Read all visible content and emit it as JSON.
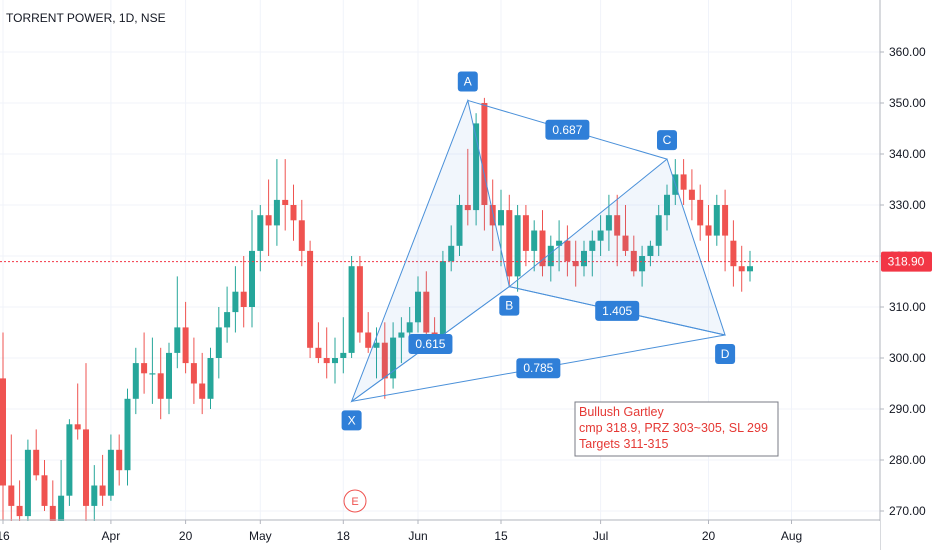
{
  "header": {
    "title": "TORRENT POWER, 1D, NSE"
  },
  "price_tag": {
    "label": "318.90",
    "color": "#f23645"
  },
  "colors": {
    "up": "#26a69a",
    "down": "#ef5350",
    "pattern": "#4a90d9",
    "label_bg": "#2f7fd8",
    "grid": "#f0f3fa",
    "note": "#e53935"
  },
  "annotation": {
    "lines": [
      "Bullush Gartley",
      "cmp 318.9, PRZ 303~305, SL 299",
      "Targets 311-315"
    ]
  },
  "event_marker": {
    "label": "E"
  },
  "chart_data": {
    "type": "candlestick",
    "title": "TORRENT POWER, 1D, NSE",
    "xlabel": "",
    "ylabel": "",
    "ylim": [
      268,
      368
    ],
    "y_ticks": [
      270,
      280,
      290,
      300,
      310,
      320,
      330,
      340,
      350,
      360
    ],
    "y_tick_labels": [
      "270.00",
      "280.00",
      "290.00",
      "300.00",
      "310.00",
      "320.00",
      "330.00",
      "340.00",
      "350.00",
      "360.00"
    ],
    "x_ticks": [
      {
        "bar": 0,
        "label": "16"
      },
      {
        "bar": 13,
        "label": "Apr"
      },
      {
        "bar": 22,
        "label": "20"
      },
      {
        "bar": 31,
        "label": "May"
      },
      {
        "bar": 41,
        "label": "18"
      },
      {
        "bar": 50,
        "label": "Jun"
      },
      {
        "bar": 60,
        "label": "15"
      },
      {
        "bar": 72,
        "label": "Jul"
      },
      {
        "bar": 85,
        "label": "20"
      },
      {
        "bar": 95,
        "label": "Aug"
      }
    ],
    "current_price": 318.9,
    "candles": [
      [
        296,
        305,
        268,
        275
      ],
      [
        275,
        285,
        263,
        271
      ],
      [
        271,
        276,
        266,
        269
      ],
      [
        269,
        284,
        268,
        282
      ],
      [
        282,
        286,
        276,
        277
      ],
      [
        277,
        280,
        270,
        271
      ],
      [
        271,
        276,
        262,
        265
      ],
      [
        265,
        280,
        263,
        273
      ],
      [
        273,
        288,
        271,
        287
      ],
      [
        287,
        295,
        284,
        286
      ],
      [
        286,
        299,
        266,
        271
      ],
      [
        271,
        279,
        268,
        275
      ],
      [
        275,
        281,
        271,
        273
      ],
      [
        273,
        285,
        272,
        282
      ],
      [
        282,
        285,
        275,
        278
      ],
      [
        278,
        294,
        275,
        292
      ],
      [
        292,
        302,
        289,
        299
      ],
      [
        299,
        305,
        293,
        297
      ],
      [
        297,
        304,
        291,
        297
      ],
      [
        297,
        302,
        288,
        292
      ],
      [
        292,
        303,
        289,
        301
      ],
      [
        301,
        316,
        298,
        306
      ],
      [
        306,
        311,
        297,
        299
      ],
      [
        299,
        304,
        291,
        295
      ],
      [
        295,
        301,
        289,
        292
      ],
      [
        292,
        302,
        290,
        300
      ],
      [
        300,
        310,
        296,
        306
      ],
      [
        306,
        314,
        303,
        309
      ],
      [
        309,
        318,
        305,
        313
      ],
      [
        313,
        320,
        306,
        310
      ],
      [
        310,
        329,
        306,
        321
      ],
      [
        321,
        330,
        317,
        328
      ],
      [
        328,
        335,
        320,
        326
      ],
      [
        326,
        339,
        322,
        331
      ],
      [
        331,
        339,
        325,
        330
      ],
      [
        330,
        334,
        323,
        327
      ],
      [
        327,
        331,
        318,
        321
      ],
      [
        321,
        323,
        300,
        302
      ],
      [
        302,
        307,
        299,
        300
      ],
      [
        300,
        306,
        296,
        299
      ],
      [
        299,
        304,
        295,
        300
      ],
      [
        300,
        308,
        297,
        301
      ],
      [
        301,
        320,
        300,
        318
      ],
      [
        318,
        320,
        303,
        305
      ],
      [
        305,
        309,
        301,
        302
      ],
      [
        302,
        306,
        296,
        303
      ],
      [
        303,
        307,
        292,
        296
      ],
      [
        296,
        307,
        294,
        304
      ],
      [
        304,
        308,
        299,
        305
      ],
      [
        305,
        310,
        302,
        307
      ],
      [
        307,
        316,
        305,
        313
      ],
      [
        313,
        317,
        304,
        305
      ],
      [
        305,
        308,
        302,
        303
      ],
      [
        303,
        321,
        302,
        319
      ],
      [
        319,
        326,
        317,
        322
      ],
      [
        322,
        332,
        320,
        330
      ],
      [
        330,
        341,
        326,
        329
      ],
      [
        329,
        348,
        326,
        346
      ],
      [
        350,
        351,
        325,
        330
      ],
      [
        330,
        335,
        321,
        326
      ],
      [
        326,
        333,
        318,
        329
      ],
      [
        329,
        332,
        314,
        316
      ],
      [
        316,
        330,
        313,
        328
      ],
      [
        328,
        330,
        318,
        321
      ],
      [
        321,
        327,
        317,
        325
      ],
      [
        325,
        329,
        316,
        318
      ],
      [
        318,
        324,
        315,
        322
      ],
      [
        322,
        327,
        317,
        323
      ],
      [
        323,
        326,
        316,
        319
      ],
      [
        319,
        323,
        314,
        318
      ],
      [
        318,
        323,
        316,
        321
      ],
      [
        321,
        325,
        316,
        323
      ],
      [
        323,
        328,
        320,
        325
      ],
      [
        325,
        332,
        321,
        328
      ],
      [
        328,
        332,
        318,
        324
      ],
      [
        324,
        330,
        320,
        321
      ],
      [
        321,
        324,
        316,
        317
      ],
      [
        317,
        322,
        314,
        320
      ],
      [
        320,
        323,
        318,
        322
      ],
      [
        322,
        330,
        320,
        328
      ],
      [
        328,
        334,
        325,
        332
      ],
      [
        332,
        339,
        330,
        336
      ],
      [
        336,
        339,
        330,
        333
      ],
      [
        333,
        337,
        327,
        331
      ],
      [
        331,
        334,
        323,
        326
      ],
      [
        326,
        330,
        319,
        324
      ],
      [
        324,
        332,
        322,
        330
      ],
      [
        330,
        333,
        317,
        324
      ],
      [
        323,
        327,
        314,
        318
      ],
      [
        318,
        322,
        313,
        317
      ],
      [
        317,
        321,
        315,
        318
      ]
    ],
    "pattern": {
      "name": "Bullush Gartley",
      "points": [
        {
          "label": "X",
          "bar": 42,
          "price": 291.5
        },
        {
          "label": "A",
          "bar": 56,
          "price": 350.5
        },
        {
          "label": "B",
          "bar": 61,
          "price": 314.0
        },
        {
          "label": "C",
          "bar": 80,
          "price": 339.0
        },
        {
          "label": "D",
          "bar": 87,
          "price": 304.5
        }
      ],
      "ratios": [
        {
          "from": "X",
          "to": "B",
          "value": "0.615"
        },
        {
          "from": "A",
          "to": "C",
          "value": "0.687"
        },
        {
          "from": "B",
          "to": "D",
          "value": "1.405"
        },
        {
          "from": "X",
          "to": "D",
          "value": "0.785"
        }
      ]
    }
  }
}
